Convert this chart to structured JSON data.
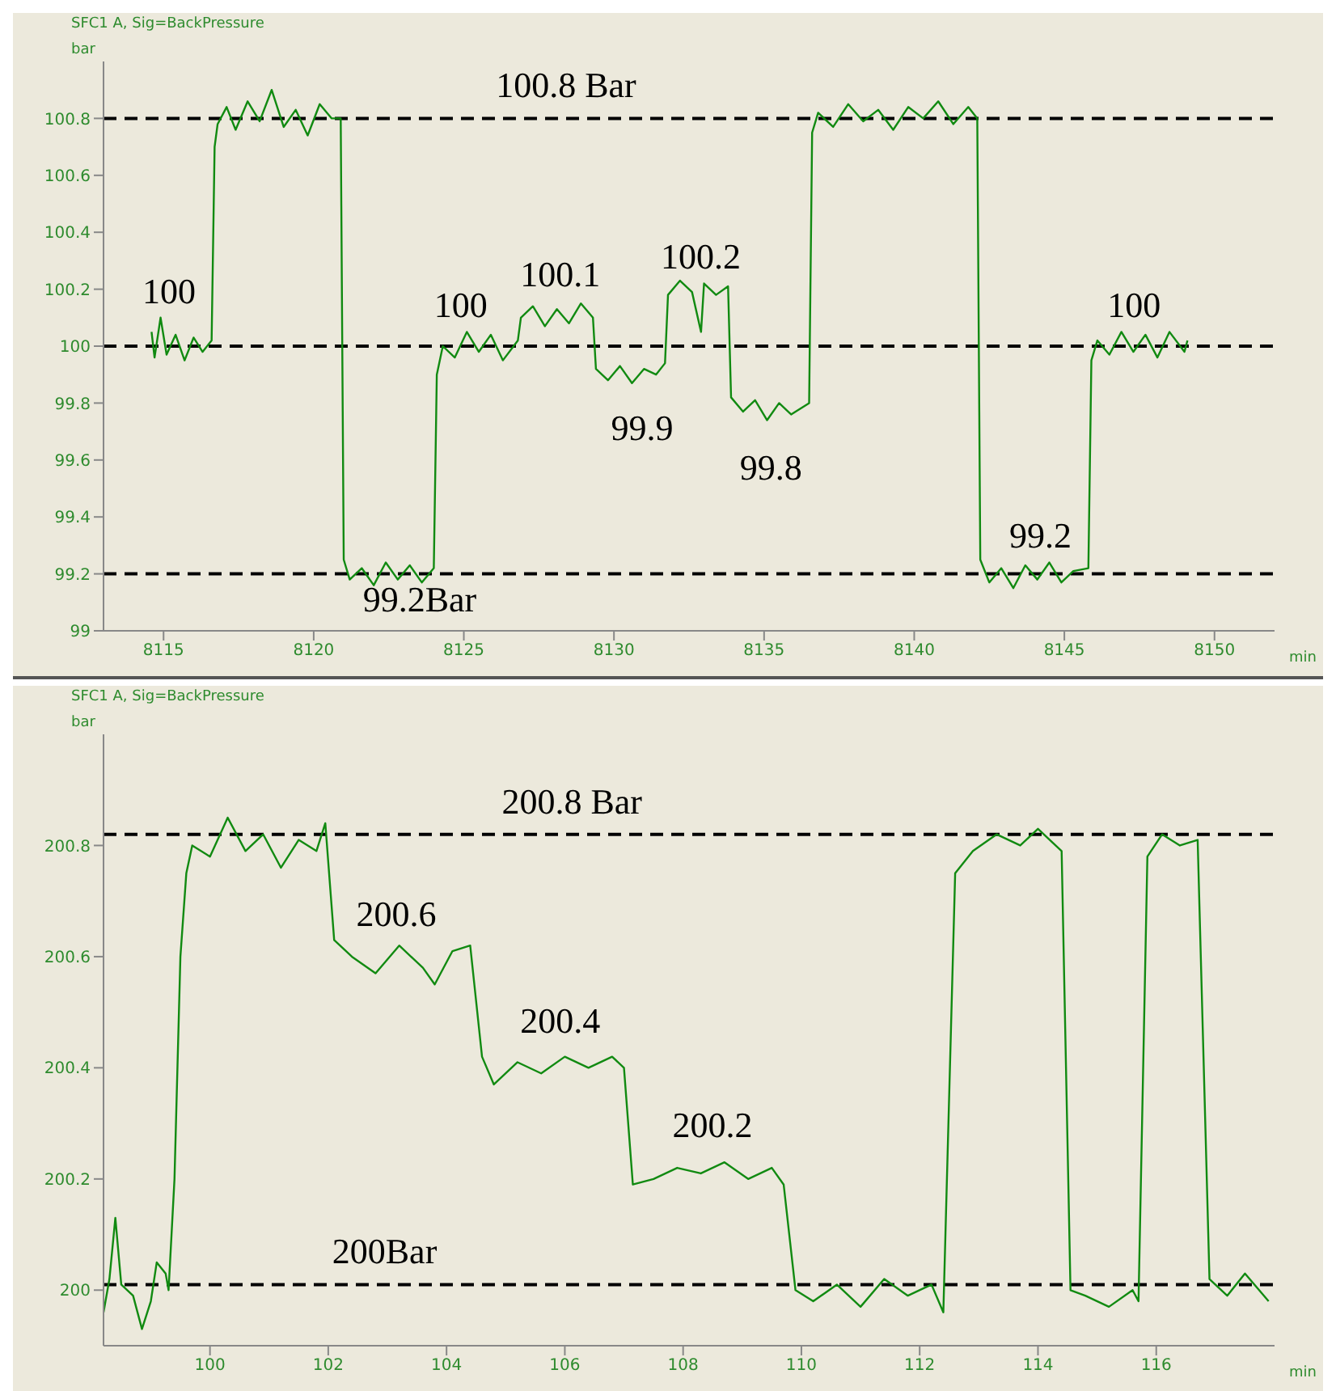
{
  "chart_data": [
    {
      "type": "line",
      "title": "SFC1 A, Sig=BackPressure",
      "ylabel": "bar",
      "xlabel": "min",
      "xlim": [
        8113,
        8152
      ],
      "ylim": [
        99,
        101
      ],
      "xticks": [
        8115,
        8120,
        8125,
        8130,
        8135,
        8140,
        8145,
        8150
      ],
      "yticks": [
        99,
        99.2,
        99.4,
        99.6,
        99.8,
        100,
        100.2,
        100.4,
        100.6,
        100.8
      ],
      "x": [
        8114.6,
        8114.7,
        8114.9,
        8115.1,
        8115.4,
        8115.7,
        8116.0,
        8116.3,
        8116.6,
        8116.7,
        8116.8,
        8117.1,
        8117.4,
        8117.8,
        8118.2,
        8118.6,
        8119.0,
        8119.4,
        8119.8,
        8120.2,
        8120.6,
        8120.9,
        8121.0,
        8121.2,
        8121.6,
        8122.0,
        8122.4,
        8122.8,
        8123.2,
        8123.6,
        8124.0,
        8124.1,
        8124.3,
        8124.7,
        8125.1,
        8125.5,
        8125.9,
        8126.3,
        8126.8,
        8126.9,
        8127.3,
        8127.7,
        8128.1,
        8128.5,
        8128.9,
        8129.3,
        8129.4,
        8129.8,
        8130.2,
        8130.6,
        8131.0,
        8131.4,
        8131.7,
        8131.8,
        8132.2,
        8132.6,
        8132.9,
        8133.0,
        8133.4,
        8133.8,
        8133.9,
        8134.3,
        8134.7,
        8135.1,
        8135.5,
        8135.9,
        8136.5,
        8136.6,
        8136.8,
        8137.3,
        8137.8,
        8138.3,
        8138.8,
        8139.3,
        8139.8,
        8140.3,
        8140.8,
        8141.3,
        8141.8,
        8142.1,
        8142.2,
        8142.5,
        8142.9,
        8143.3,
        8143.7,
        8144.1,
        8144.5,
        8144.9,
        8145.3,
        8145.8,
        8145.9,
        8146.1,
        8146.5,
        8146.9,
        8147.3,
        8147.7,
        8148.1,
        8148.5,
        8149.0,
        8149.1
      ],
      "series": [
        {
          "color": "#118a11",
          "values": [
            100.05,
            99.96,
            100.1,
            99.97,
            100.04,
            99.95,
            100.03,
            99.98,
            100.02,
            100.7,
            100.78,
            100.84,
            100.76,
            100.86,
            100.79,
            100.9,
            100.77,
            100.83,
            100.74,
            100.85,
            100.8,
            100.8,
            99.25,
            99.18,
            99.22,
            99.16,
            99.24,
            99.18,
            99.23,
            99.17,
            99.22,
            99.9,
            100.0,
            99.96,
            100.05,
            99.98,
            100.04,
            99.95,
            100.02,
            100.1,
            100.14,
            100.07,
            100.13,
            100.08,
            100.15,
            100.1,
            99.92,
            99.88,
            99.93,
            99.87,
            99.92,
            99.9,
            99.94,
            100.18,
            100.23,
            100.19,
            100.05,
            100.22,
            100.18,
            100.21,
            99.82,
            99.77,
            99.81,
            99.74,
            99.8,
            99.76,
            99.8,
            100.75,
            100.82,
            100.77,
            100.85,
            100.79,
            100.83,
            100.76,
            100.84,
            100.8,
            100.86,
            100.78,
            100.84,
            100.8,
            99.25,
            99.17,
            99.22,
            99.15,
            99.23,
            99.18,
            99.24,
            99.17,
            99.21,
            99.22,
            99.95,
            100.02,
            99.97,
            100.05,
            99.98,
            100.04,
            99.96,
            100.05,
            99.98,
            100.02
          ]
        }
      ],
      "ref_lines": [
        {
          "axis": "y",
          "value": 100.8,
          "label": "100.8 Bar",
          "color": "#000000",
          "line_style": "dashed"
        },
        {
          "axis": "y",
          "value": 100,
          "color": "#000000",
          "line_style": "dashed"
        },
        {
          "axis": "y",
          "value": 99.2,
          "label": "99.2Bar",
          "color": "#000000",
          "line_style": "dashed"
        }
      ],
      "annotations": [
        "100",
        "100",
        "100.1",
        "99.9",
        "100.2",
        "99.8",
        "99.2",
        "100"
      ]
    },
    {
      "type": "line",
      "title": "SFC1 A, Sig=BackPressure",
      "ylabel": "bar",
      "xlabel": "min",
      "xlim": [
        98.2,
        118
      ],
      "ylim": [
        199.9,
        201
      ],
      "xticks": [
        100,
        102,
        104,
        106,
        108,
        110,
        112,
        114,
        116
      ],
      "yticks": [
        200,
        200.2,
        200.4,
        200.6,
        200.8
      ],
      "x": [
        98.2,
        98.3,
        98.4,
        98.5,
        98.7,
        98.85,
        99.0,
        99.1,
        99.25,
        99.3,
        99.4,
        99.5,
        99.6,
        99.7,
        100.0,
        100.3,
        100.6,
        100.9,
        101.2,
        101.5,
        101.8,
        101.95,
        102.1,
        102.4,
        102.8,
        103.2,
        103.6,
        103.8,
        104.1,
        104.4,
        104.6,
        104.8,
        105.2,
        105.6,
        106.0,
        106.4,
        106.8,
        107.0,
        107.15,
        107.5,
        107.9,
        108.3,
        108.7,
        109.1,
        109.5,
        109.7,
        109.9,
        110.2,
        110.6,
        111.0,
        111.4,
        111.8,
        112.2,
        112.4,
        112.6,
        112.9,
        113.3,
        113.7,
        114.0,
        114.4,
        114.55,
        114.8,
        115.2,
        115.6,
        115.7,
        115.85,
        116.1,
        116.4,
        116.7,
        116.9,
        117.2,
        117.5,
        117.9
      ],
      "series": [
        {
          "color": "#118a11",
          "values": [
            199.96,
            200.02,
            200.13,
            200.01,
            199.99,
            199.93,
            199.98,
            200.05,
            200.03,
            200.0,
            200.2,
            200.6,
            200.75,
            200.8,
            200.78,
            200.85,
            200.79,
            200.82,
            200.76,
            200.81,
            200.79,
            200.84,
            200.63,
            200.6,
            200.57,
            200.62,
            200.58,
            200.55,
            200.61,
            200.62,
            200.42,
            200.37,
            200.41,
            200.39,
            200.42,
            200.4,
            200.42,
            200.4,
            200.19,
            200.2,
            200.22,
            200.21,
            200.23,
            200.2,
            200.22,
            200.19,
            200.0,
            199.98,
            200.01,
            199.97,
            200.02,
            199.99,
            200.01,
            199.96,
            200.75,
            200.79,
            200.82,
            200.8,
            200.83,
            200.79,
            200.0,
            199.99,
            199.97,
            200.0,
            199.98,
            200.78,
            200.82,
            200.8,
            200.81,
            200.02,
            199.99,
            200.03,
            199.98
          ]
        }
      ],
      "ref_lines": [
        {
          "axis": "y",
          "value": 200.82,
          "label": "200.8 Bar",
          "color": "#000000",
          "line_style": "dashed"
        },
        {
          "axis": "y",
          "value": 200.01,
          "label": "200Bar",
          "color": "#000000",
          "line_style": "dashed"
        }
      ],
      "annotations": [
        "200.6",
        "200.4",
        "200.2"
      ]
    }
  ]
}
